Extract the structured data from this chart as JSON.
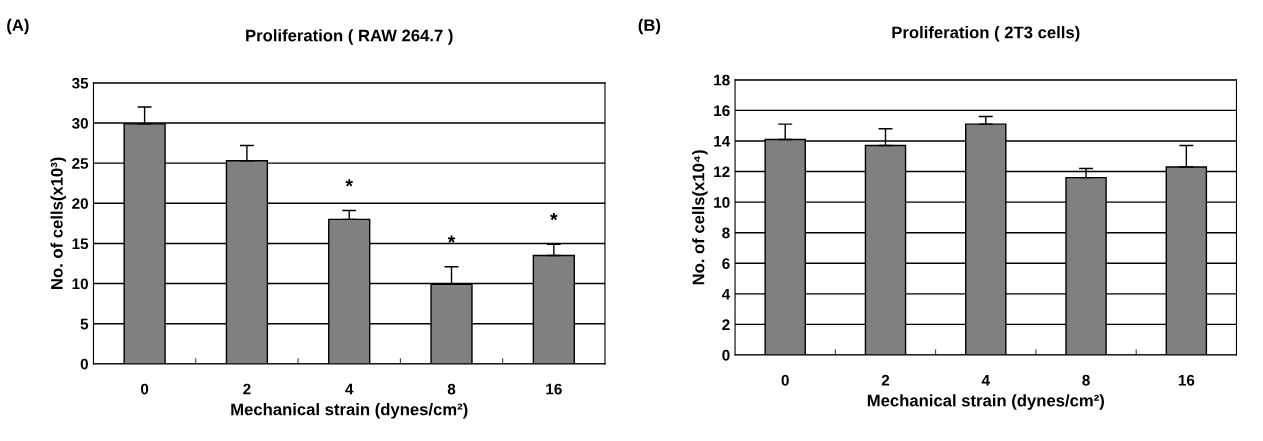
{
  "chart_data": [
    {
      "type": "bar",
      "title": "Proliferation ( RAW 264.7 )",
      "xlabel": "Mechanical strain (dynes/cm²)",
      "ylabel": "No. of cells(x10³)",
      "categories": [
        "0",
        "2",
        "4",
        "8",
        "16"
      ],
      "values": [
        29.9,
        25.3,
        18.0,
        9.9,
        13.5
      ],
      "color": "#808080",
      "errors": [
        [
          29.9,
          32.0
        ],
        [
          25.3,
          27.2
        ],
        [
          18.0,
          19.1
        ],
        [
          9.9,
          12.1
        ],
        [
          13.5,
          14.9
        ]
      ],
      "ylim": [
        0,
        35
      ],
      "yticks": [
        0,
        5,
        10,
        15,
        20,
        25,
        30,
        35
      ],
      "grid": "y",
      "legend": false,
      "annotations": [
        "(A)",
        "*",
        "*",
        "*"
      ]
    },
    {
      "type": "bar",
      "title": "Proliferation ( 2T3 cells)",
      "xlabel": "Mechanical strain (dynes/cm²)",
      "ylabel": "No. of cells(x10⁴)",
      "categories": [
        "0",
        "2",
        "4",
        "8",
        "16"
      ],
      "values": [
        14.1,
        13.7,
        15.1,
        11.6,
        12.3
      ],
      "color": "#808080",
      "errors": [
        [
          14.1,
          15.1
        ],
        [
          13.7,
          14.8
        ],
        [
          15.1,
          15.6
        ],
        [
          11.6,
          12.2
        ],
        [
          12.3,
          13.7
        ]
      ],
      "ylim": [
        0,
        18
      ],
      "yticks": [
        0,
        2,
        4,
        6,
        8,
        10,
        12,
        14,
        16,
        18
      ],
      "grid": "y",
      "legend": false,
      "annotations": [
        "(B)"
      ]
    }
  ]
}
